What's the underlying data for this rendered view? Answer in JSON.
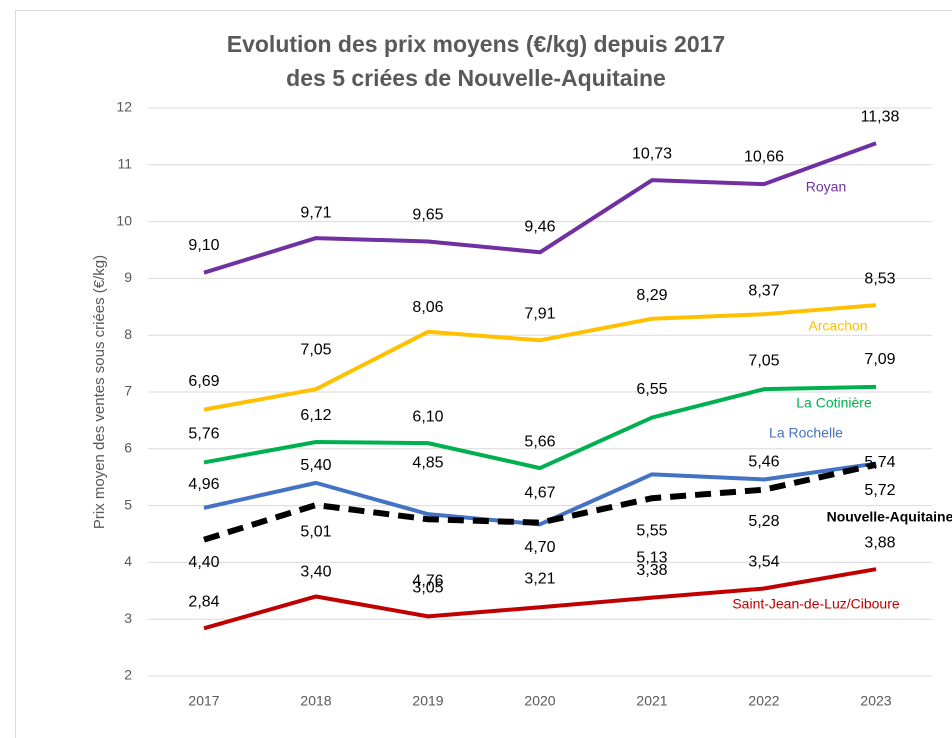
{
  "chart_data": {
    "type": "line",
    "title": "Evolution des prix moyens (€/kg) depuis 2017",
    "subtitle": "des 5 criées de Nouvelle-Aquitaine",
    "y_label": "Prix moyen des ventes sous criées (€/kg)",
    "categories": [
      "2017",
      "2018",
      "2019",
      "2020",
      "2021",
      "2022",
      "2023"
    ],
    "ylim": [
      2,
      12
    ],
    "yticks": [
      2,
      3,
      4,
      5,
      6,
      7,
      8,
      9,
      10,
      11,
      12
    ],
    "grid": true,
    "series": [
      {
        "name": "Royan",
        "color": "#7030a0",
        "values": [
          9.1,
          9.71,
          9.65,
          9.46,
          10.73,
          10.66,
          11.38
        ],
        "value_labels": [
          "9,10",
          "9,71",
          "9,65",
          "9,46",
          "10,73",
          "10,66",
          "11,38"
        ]
      },
      {
        "name": "Arcachon",
        "color": "#ffc000",
        "values": [
          6.69,
          7.05,
          8.06,
          7.91,
          8.29,
          8.37,
          8.53
        ],
        "value_labels": [
          "6,69",
          "7,05",
          "8,06",
          "7,91",
          "8,29",
          "8,37",
          "8,53"
        ]
      },
      {
        "name": "La Cotinière",
        "color": "#00b050",
        "values": [
          5.76,
          6.12,
          6.1,
          5.66,
          6.55,
          7.05,
          7.09
        ],
        "value_labels": [
          "5,76",
          "6,12",
          "6,10",
          "5,66",
          "6,55",
          "7,05",
          "7,09"
        ]
      },
      {
        "name": "La Rochelle",
        "color": "#4472c4",
        "values": [
          4.96,
          5.4,
          4.85,
          4.67,
          5.55,
          5.46,
          5.74
        ],
        "value_labels": [
          "4,96",
          "5,40",
          "4,85",
          "4,67",
          "5,55",
          "5,46",
          "5,74"
        ]
      },
      {
        "name": "Nouvelle-Aquitaine",
        "color": "#000000",
        "dashed": true,
        "values": [
          4.4,
          5.01,
          4.76,
          4.7,
          5.13,
          5.28,
          5.72
        ],
        "value_labels": [
          "4,40",
          "5,01",
          "4,76",
          "4,70",
          "5,13",
          "5,28",
          "5,72"
        ]
      },
      {
        "name": "Saint-Jean-de-Luz/Ciboure",
        "color": "#c00000",
        "values": [
          2.84,
          3.4,
          3.05,
          3.21,
          3.38,
          3.54,
          3.88
        ],
        "value_labels": [
          "2,84",
          "3,40",
          "3,05",
          "3,21",
          "3,38",
          "3,54",
          "3,88"
        ]
      }
    ]
  }
}
